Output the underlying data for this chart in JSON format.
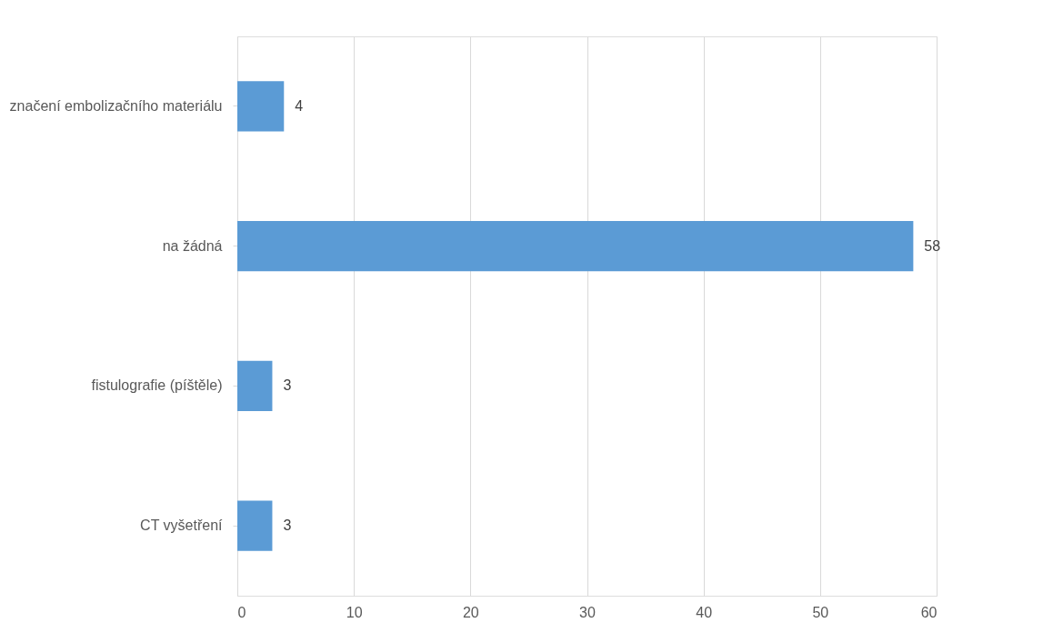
{
  "chart_data": {
    "type": "bar",
    "orientation": "horizontal",
    "categories": [
      "značení embolizačního materiálu",
      "na žádná",
      "fistulografie (píštěle)",
      "CT vyšetření"
    ],
    "values": [
      4,
      58,
      3,
      3
    ],
    "color": "#5b9bd5",
    "xlim": [
      0,
      60
    ],
    "xticks": [
      0,
      10,
      20,
      30,
      40,
      50,
      60
    ],
    "grid": "x",
    "data_labels": true
  }
}
